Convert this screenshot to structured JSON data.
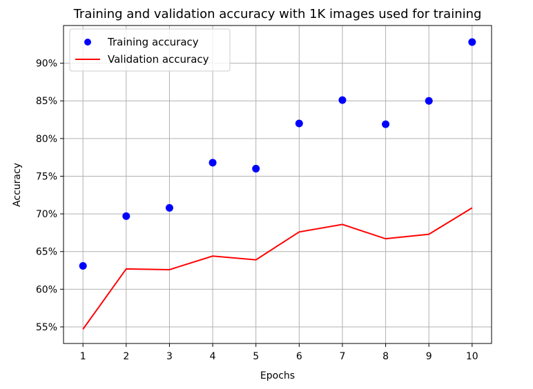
{
  "chart_data": {
    "type": "line",
    "title": "Training and validation accuracy with 1K images used for training",
    "xlabel": "Epochs",
    "ylabel": "Accuracy",
    "x": [
      1,
      2,
      3,
      4,
      5,
      6,
      7,
      8,
      9,
      10
    ],
    "xlim": [
      0.55,
      10.45
    ],
    "ylim": [
      0.528,
      0.95
    ],
    "xticks": [
      1,
      2,
      3,
      4,
      5,
      6,
      7,
      8,
      9,
      10
    ],
    "yticks": [
      0.55,
      0.6,
      0.65,
      0.7,
      0.75,
      0.8,
      0.85,
      0.9
    ],
    "ytick_labels": [
      "55%",
      "60%",
      "65%",
      "70%",
      "75%",
      "80%",
      "85%",
      "90%"
    ],
    "grid": true,
    "legend_position": "top-left",
    "series": [
      {
        "name": "Training accuracy",
        "style": "markers",
        "color": "#0000ff",
        "values": [
          0.631,
          0.697,
          0.708,
          0.768,
          0.76,
          0.82,
          0.851,
          0.819,
          0.85,
          0.928
        ]
      },
      {
        "name": "Validation accuracy",
        "style": "line",
        "color": "#ff0000",
        "values": [
          0.547,
          0.627,
          0.626,
          0.644,
          0.639,
          0.676,
          0.686,
          0.667,
          0.673,
          0.708
        ]
      }
    ]
  }
}
